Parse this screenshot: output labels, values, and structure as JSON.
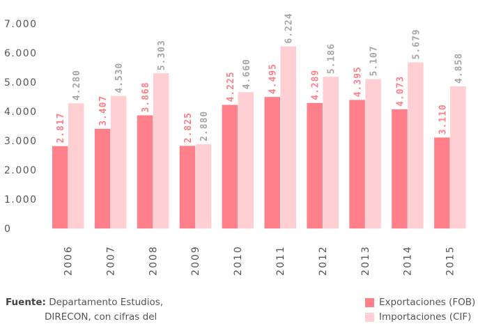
{
  "chart_data": {
    "type": "bar",
    "categories": [
      "2006",
      "2007",
      "2008",
      "2009",
      "2010",
      "2011",
      "2012",
      "2013",
      "2014",
      "2015"
    ],
    "series": [
      {
        "name": "Exportaciones (FOB)",
        "values": [
          2817,
          3407,
          3868,
          2825,
          4225,
          4495,
          4289,
          4395,
          4073,
          3110
        ],
        "labels": [
          "2.817",
          "3.407",
          "3.868",
          "2.825",
          "4.225",
          "4.495",
          "4.289",
          "4.395",
          "4.073",
          "3.110"
        ],
        "color": "#ff7f8a",
        "label_color": "#ff7f8a"
      },
      {
        "name": "Importaciones (CIF)",
        "values": [
          4280,
          4530,
          5303,
          2880,
          4660,
          6224,
          5186,
          5107,
          5679,
          4858
        ],
        "labels": [
          "4.280",
          "4.530",
          "5.303",
          "2.880",
          "4.660",
          "6.224",
          "5.186",
          "5.107",
          "5.679",
          "4.858"
        ],
        "color": "#ffcfd3",
        "label_color": "#a6a6a6"
      }
    ],
    "yticks": [
      0,
      1000,
      2000,
      3000,
      4000,
      5000,
      6000,
      7000
    ],
    "ytick_labels": [
      "0",
      "1.000",
      "2.000",
      "3.000",
      "4.000",
      "5.000",
      "6.000",
      "7.000"
    ],
    "ylim": [
      0,
      7000
    ],
    "grid": false,
    "legend_position": "bottom-right"
  },
  "source": {
    "label": "Fuente:",
    "line1": "Departamento Estudios,",
    "line2": "DIRECON, con cifras del"
  }
}
